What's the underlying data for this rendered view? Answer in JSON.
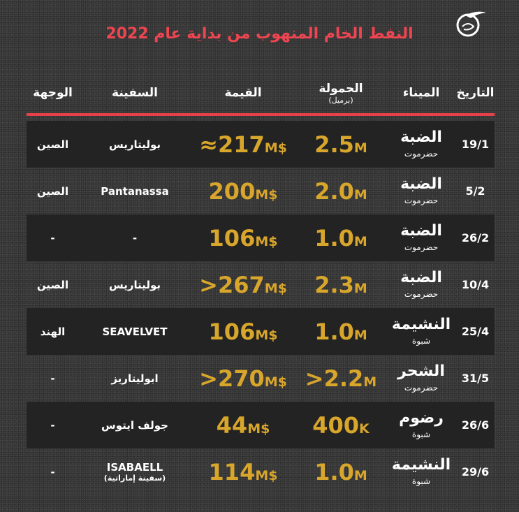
{
  "title": "النفط الخام المنهوب من بداية عام 2022",
  "colors": {
    "title": "#ee4550",
    "accent_gold": "#d9a62c",
    "rule": "#e8404a",
    "background": "#343434",
    "band": "#262626"
  },
  "logo_icon": "al-mayadeen-logo",
  "headers": {
    "date": "التاريخ",
    "port": "الميناء",
    "load": "الحمولة",
    "load_unit": "(برميل)",
    "value": "القيمة",
    "ship": "السفينة",
    "dest": "الوجهة"
  },
  "rows": [
    {
      "date": "19/1",
      "port": "الضبة",
      "region": "حضرموت",
      "load": "2.5",
      "load_unit": "M",
      "value": "≈217",
      "value_unit": "M$",
      "ship": "بوليتاريس",
      "ship_note": "",
      "dest": "الصين"
    },
    {
      "date": "5/2",
      "port": "الضبة",
      "region": "حضرموت",
      "load": "2.0",
      "load_unit": "M",
      "value": "200",
      "value_unit": "M$",
      "ship": "Pantanassa",
      "ship_note": "",
      "dest": "الصين"
    },
    {
      "date": "26/2",
      "port": "الضبة",
      "region": "حضرموت",
      "load": "1.0",
      "load_unit": "M",
      "value": "106",
      "value_unit": "M$",
      "ship": "-",
      "ship_note": "",
      "dest": "-"
    },
    {
      "date": "10/4",
      "port": "الضبة",
      "region": "حضرموت",
      "load": "2.3",
      "load_unit": "M",
      "value": ">267",
      "value_unit": "M$",
      "ship": "بوليتاريس",
      "ship_note": "",
      "dest": "الصين"
    },
    {
      "date": "25/4",
      "port": "النشيمة",
      "region": "شبوة",
      "load": "1.0",
      "load_unit": "M",
      "value": "106",
      "value_unit": "M$",
      "ship": "SEAVELVET",
      "ship_note": "",
      "dest": "الهند"
    },
    {
      "date": "31/5",
      "port": "الشحر",
      "region": "حضرموت",
      "load": ">2.2",
      "load_unit": "M",
      "value": ">270",
      "value_unit": "M$",
      "ship": "ابوليتاريز",
      "ship_note": "",
      "dest": "-"
    },
    {
      "date": "26/6",
      "port": "رضوم",
      "region": "شبوة",
      "load": "400",
      "load_unit": "K",
      "value": "44",
      "value_unit": "M$",
      "ship": "جولف ايتوس",
      "ship_note": "",
      "dest": "-"
    },
    {
      "date": "29/6",
      "port": "النشيمة",
      "region": "شبوة",
      "load": "1.0",
      "load_unit": "M",
      "value": "114",
      "value_unit": "M$",
      "ship": "ISABAELL",
      "ship_note": "(سفينة إماراتية)",
      "dest": "-"
    }
  ]
}
